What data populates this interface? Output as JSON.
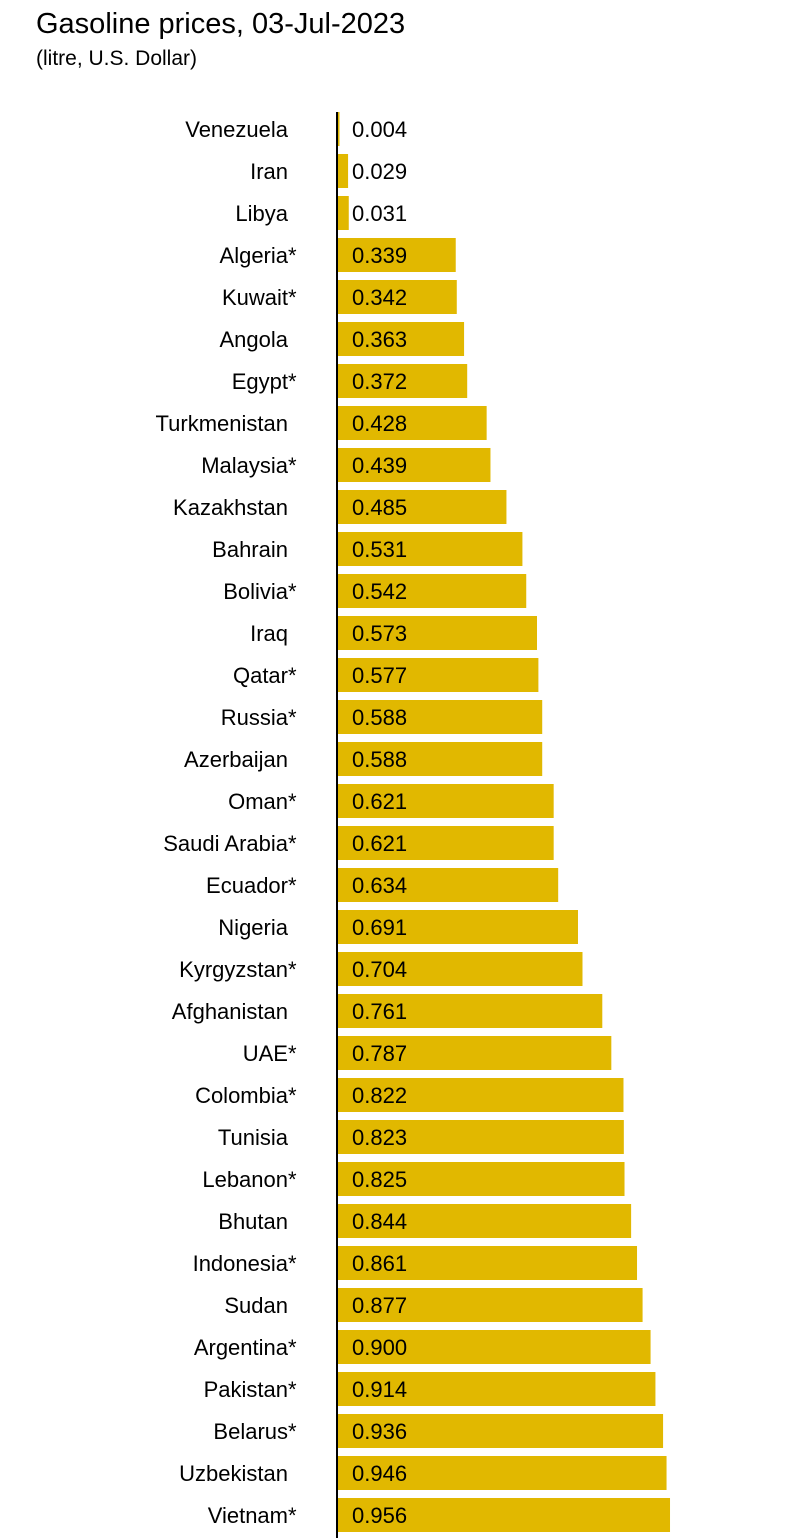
{
  "chart_data": {
    "type": "bar",
    "orientation": "horizontal",
    "title": "Gasoline prices, 03-Jul-2023",
    "subtitle": "(litre, U.S. Dollar)",
    "xlabel": "",
    "ylabel": "",
    "grid": false,
    "bar_color": "#E1B800",
    "categories": [
      "Venezuela",
      "Iran",
      "Libya",
      "Algeria*",
      "Kuwait*",
      "Angola",
      "Egypt*",
      "Turkmenistan",
      "Malaysia*",
      "Kazakhstan",
      "Bahrain",
      "Bolivia*",
      "Iraq",
      "Qatar*",
      "Russia*",
      "Azerbaijan",
      "Oman*",
      "Saudi Arabia*",
      "Ecuador*",
      "Nigeria",
      "Kyrgyzstan*",
      "Afghanistan",
      "UAE*",
      "Colombia*",
      "Tunisia",
      "Lebanon*",
      "Bhutan",
      "Indonesia*",
      "Sudan",
      "Argentina*",
      "Pakistan*",
      "Belarus*",
      "Uzbekistan",
      "Vietnam*"
    ],
    "values": [
      0.004,
      0.029,
      0.031,
      0.339,
      0.342,
      0.363,
      0.372,
      0.428,
      0.439,
      0.485,
      0.531,
      0.542,
      0.573,
      0.577,
      0.588,
      0.588,
      0.621,
      0.621,
      0.634,
      0.691,
      0.704,
      0.761,
      0.787,
      0.822,
      0.823,
      0.825,
      0.844,
      0.861,
      0.877,
      0.9,
      0.914,
      0.936,
      0.946,
      0.956
    ],
    "value_labels": [
      "0.004",
      "0.029",
      "0.031",
      "0.339",
      "0.342",
      "0.363",
      "0.372",
      "0.428",
      "0.439",
      "0.485",
      "0.531",
      "0.542",
      "0.573",
      "0.577",
      "0.588",
      "0.588",
      "0.621",
      "0.621",
      "0.634",
      "0.691",
      "0.704",
      "0.761",
      "0.787",
      "0.822",
      "0.823",
      "0.825",
      "0.844",
      "0.861",
      "0.877",
      "0.900",
      "0.914",
      "0.936",
      "0.946",
      "0.956"
    ]
  }
}
